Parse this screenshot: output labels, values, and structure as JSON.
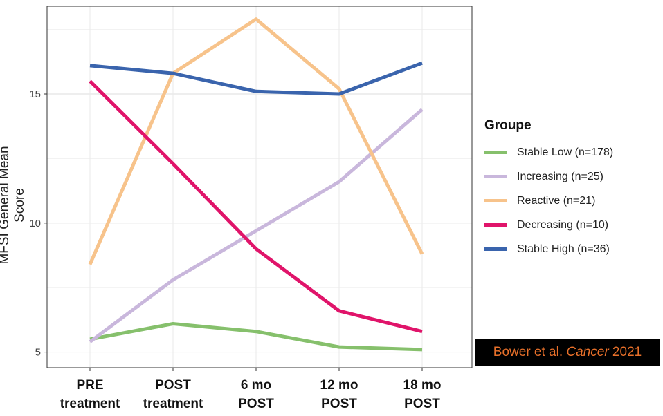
{
  "chart_data": {
    "type": "line",
    "ylabel": "MFSI General Mean Score",
    "ylim": [
      4.4,
      18.4
    ],
    "yticks": [
      5,
      10,
      15
    ],
    "grid": true,
    "legend_position": "right",
    "categories": [
      [
        "PRE",
        "treatment"
      ],
      [
        "POST",
        "treatment"
      ],
      [
        "6 mo",
        "POST"
      ],
      [
        "12 mo",
        "POST"
      ],
      [
        "18 mo",
        "POST"
      ]
    ],
    "legend_title": "Groupe",
    "series": [
      {
        "name": "Stable Low (n=178)",
        "color": "#86c06c",
        "values": [
          5.5,
          6.1,
          5.8,
          5.2,
          5.1
        ]
      },
      {
        "name": "Increasing (n=25)",
        "color": "#c9b7dc",
        "values": [
          5.4,
          7.8,
          9.7,
          11.6,
          14.4
        ]
      },
      {
        "name": "Reactive (n=21)",
        "color": "#f7c38b",
        "values": [
          8.4,
          15.8,
          17.9,
          15.2,
          8.8
        ]
      },
      {
        "name": "Decreasing (n=10)",
        "color": "#e0146a",
        "values": [
          15.5,
          12.3,
          9.0,
          6.6,
          5.8
        ]
      },
      {
        "name": "Stable High (n=36)",
        "color": "#3a64ad",
        "values": [
          16.1,
          15.8,
          15.1,
          15.0,
          16.2
        ]
      }
    ]
  },
  "citation": {
    "prefix": "Bower et al. ",
    "journal": "Cancer",
    "year": " 2021"
  }
}
